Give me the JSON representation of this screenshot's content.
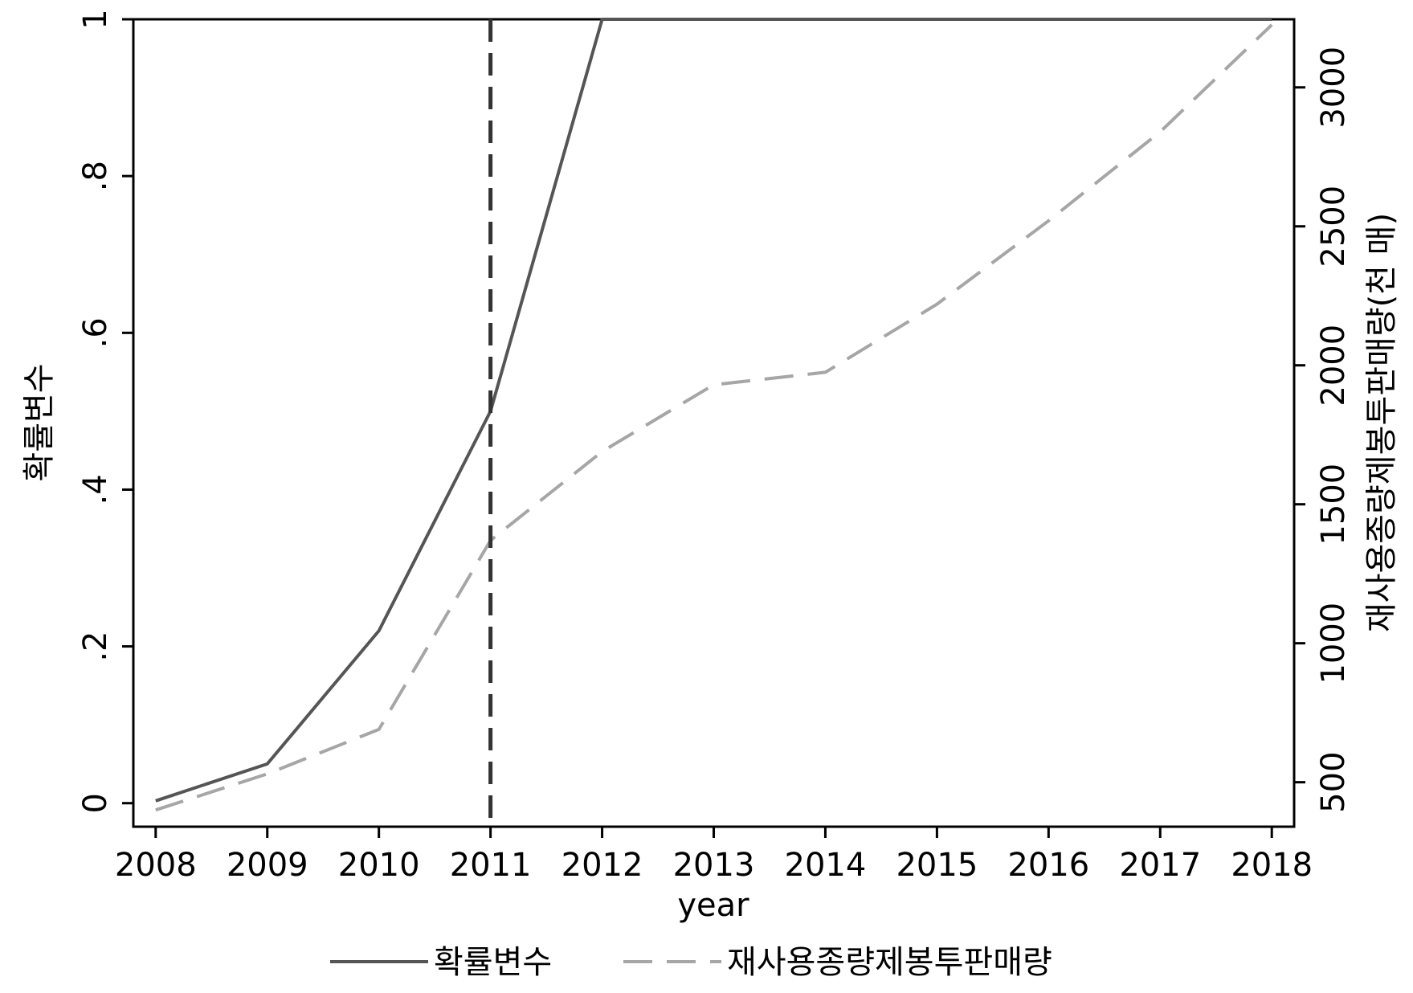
{
  "chart_data": {
    "type": "line",
    "xlabel": "year",
    "ylabel_left": "확률변수",
    "ylabel_right": "재사용종량제봉투판매량(천 매)",
    "x": [
      2008,
      2009,
      2010,
      2011,
      2012,
      2013,
      2014,
      2015,
      2016,
      2017,
      2018
    ],
    "xlim": [
      2007.8,
      2018.2
    ],
    "x_ticks": [
      "2008",
      "2009",
      "2010",
      "2011",
      "2012",
      "2013",
      "2014",
      "2015",
      "2016",
      "2017",
      "2018"
    ],
    "ylim_left": [
      -0.03,
      1.0
    ],
    "y_ticks_left": [
      {
        "value": 0,
        "label": "0"
      },
      {
        "value": 0.2,
        "label": ".2"
      },
      {
        "value": 0.4,
        "label": ".4"
      },
      {
        "value": 0.6,
        "label": ".6"
      },
      {
        "value": 0.8,
        "label": ".8"
      },
      {
        "value": 1.0,
        "label": "1"
      }
    ],
    "ylim_right": [
      340,
      3245
    ],
    "y_ticks_right": [
      {
        "value": 500,
        "label": "500"
      },
      {
        "value": 1000,
        "label": "1000"
      },
      {
        "value": 1500,
        "label": "1500"
      },
      {
        "value": 2000,
        "label": "2000"
      },
      {
        "value": 2500,
        "label": "2500"
      },
      {
        "value": 3000,
        "label": "3000"
      }
    ],
    "series": [
      {
        "name": "확률변수",
        "axis": "left",
        "style": "solid",
        "color": "#555555",
        "values": [
          0.003,
          0.05,
          0.22,
          0.5,
          1.0,
          1.0,
          1.0,
          1.0,
          1.0,
          1.0,
          1.0
        ]
      },
      {
        "name": "재사용종량제봉투판매량",
        "axis": "right",
        "style": "dashed",
        "color": "#a6a6a6",
        "values": [
          400,
          530,
          690,
          1370,
          1690,
          1930,
          1975,
          2220,
          2520,
          2840,
          3225
        ]
      }
    ],
    "reference_line": {
      "x": 2011,
      "style": "dashed",
      "color": "#333333"
    },
    "legend_position": "bottom",
    "grid": false
  }
}
